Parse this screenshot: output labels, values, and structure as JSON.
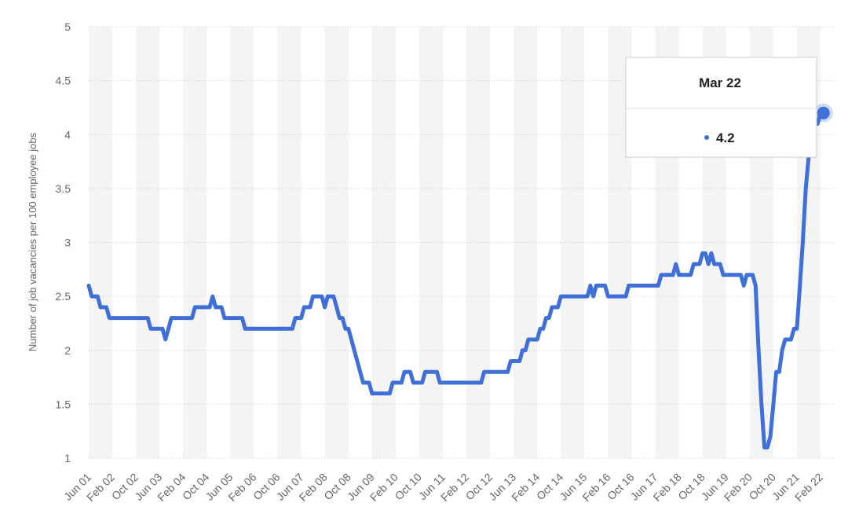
{
  "chart_data": {
    "type": "line",
    "y_label": "Number of job vacancies per 100 employee jobs",
    "color": "#3f6fd8",
    "ylim": [
      1,
      5
    ],
    "yticks": [
      1,
      1.5,
      2,
      2.5,
      3,
      3.5,
      4,
      4.5,
      5
    ],
    "grid": true,
    "categories": [
      "Jun 01",
      null,
      null,
      null,
      null,
      null,
      null,
      null,
      "Feb 02",
      null,
      null,
      null,
      null,
      null,
      null,
      null,
      "Oct 02",
      null,
      null,
      null,
      null,
      null,
      null,
      null,
      "Jun 03",
      null,
      null,
      null,
      null,
      null,
      null,
      null,
      "Feb 04",
      null,
      null,
      null,
      null,
      null,
      null,
      null,
      "Oct 04",
      null,
      null,
      null,
      null,
      null,
      null,
      null,
      "Jun 05",
      null,
      null,
      null,
      null,
      null,
      null,
      null,
      "Feb 06",
      null,
      null,
      null,
      null,
      null,
      null,
      null,
      "Oct 06",
      null,
      null,
      null,
      null,
      null,
      null,
      null,
      "Jun 07",
      null,
      null,
      null,
      null,
      null,
      null,
      null,
      "Feb 08",
      null,
      null,
      null,
      null,
      null,
      null,
      null,
      "Oct 08",
      null,
      null,
      null,
      null,
      null,
      null,
      null,
      "Jun 09",
      null,
      null,
      null,
      null,
      null,
      null,
      null,
      "Feb 10",
      null,
      null,
      null,
      null,
      null,
      null,
      null,
      "Oct 10",
      null,
      null,
      null,
      null,
      null,
      null,
      null,
      "Jun 11",
      null,
      null,
      null,
      null,
      null,
      null,
      null,
      "Feb 12",
      null,
      null,
      null,
      null,
      null,
      null,
      null,
      "Oct 12",
      null,
      null,
      null,
      null,
      null,
      null,
      null,
      "Jun 13",
      null,
      null,
      null,
      null,
      null,
      null,
      null,
      "Feb 14",
      null,
      null,
      null,
      null,
      null,
      null,
      null,
      "Oct 14",
      null,
      null,
      null,
      null,
      null,
      null,
      null,
      "Jun 15",
      null,
      null,
      null,
      null,
      null,
      null,
      null,
      "Feb 16",
      null,
      null,
      null,
      null,
      null,
      null,
      null,
      "Oct 16",
      null,
      null,
      null,
      null,
      null,
      null,
      null,
      "Jun 17",
      null,
      null,
      null,
      null,
      null,
      null,
      null,
      "Feb 18",
      null,
      null,
      null,
      null,
      null,
      null,
      null,
      "Oct 18",
      null,
      null,
      null,
      null,
      null,
      null,
      null,
      "Jun 19",
      null,
      null,
      null,
      null,
      null,
      null,
      null,
      "Feb 20",
      null,
      null,
      null,
      null,
      null,
      null,
      null,
      "Oct 20",
      null,
      null,
      null,
      null,
      null,
      null,
      null,
      "Jun 21",
      null,
      null,
      null,
      null,
      null,
      null,
      null,
      "Feb 22",
      "Mar 22"
    ],
    "values": [
      2.6,
      2.5,
      2.5,
      2.5,
      2.4,
      2.4,
      2.4,
      2.3,
      2.3,
      2.3,
      2.3,
      2.3,
      2.3,
      2.3,
      2.3,
      2.3,
      2.3,
      2.3,
      2.3,
      2.3,
      2.3,
      2.2,
      2.2,
      2.2,
      2.2,
      2.2,
      2.1,
      2.2,
      2.3,
      2.3,
      2.3,
      2.3,
      2.3,
      2.3,
      2.3,
      2.3,
      2.4,
      2.4,
      2.4,
      2.4,
      2.4,
      2.4,
      2.5,
      2.4,
      2.4,
      2.4,
      2.3,
      2.3,
      2.3,
      2.3,
      2.3,
      2.3,
      2.3,
      2.2,
      2.2,
      2.2,
      2.2,
      2.2,
      2.2,
      2.2,
      2.2,
      2.2,
      2.2,
      2.2,
      2.2,
      2.2,
      2.2,
      2.2,
      2.2,
      2.2,
      2.3,
      2.3,
      2.3,
      2.4,
      2.4,
      2.4,
      2.5,
      2.5,
      2.5,
      2.5,
      2.4,
      2.5,
      2.5,
      2.5,
      2.4,
      2.3,
      2.3,
      2.2,
      2.2,
      2.1,
      2.0,
      1.9,
      1.8,
      1.7,
      1.7,
      1.7,
      1.6,
      1.6,
      1.6,
      1.6,
      1.6,
      1.6,
      1.6,
      1.7,
      1.7,
      1.7,
      1.7,
      1.8,
      1.8,
      1.8,
      1.7,
      1.7,
      1.7,
      1.7,
      1.8,
      1.8,
      1.8,
      1.8,
      1.8,
      1.7,
      1.7,
      1.7,
      1.7,
      1.7,
      1.7,
      1.7,
      1.7,
      1.7,
      1.7,
      1.7,
      1.7,
      1.7,
      1.7,
      1.7,
      1.8,
      1.8,
      1.8,
      1.8,
      1.8,
      1.8,
      1.8,
      1.8,
      1.8,
      1.9,
      1.9,
      1.9,
      1.9,
      2.0,
      2.0,
      2.1,
      2.1,
      2.1,
      2.1,
      2.2,
      2.2,
      2.3,
      2.3,
      2.4,
      2.4,
      2.4,
      2.5,
      2.5,
      2.5,
      2.5,
      2.5,
      2.5,
      2.5,
      2.5,
      2.5,
      2.5,
      2.6,
      2.5,
      2.6,
      2.6,
      2.6,
      2.6,
      2.5,
      2.5,
      2.5,
      2.5,
      2.5,
      2.5,
      2.5,
      2.6,
      2.6,
      2.6,
      2.6,
      2.6,
      2.6,
      2.6,
      2.6,
      2.6,
      2.6,
      2.6,
      2.7,
      2.7,
      2.7,
      2.7,
      2.7,
      2.8,
      2.7,
      2.7,
      2.7,
      2.7,
      2.7,
      2.8,
      2.8,
      2.8,
      2.9,
      2.9,
      2.8,
      2.9,
      2.8,
      2.8,
      2.8,
      2.7,
      2.7,
      2.7,
      2.7,
      2.7,
      2.7,
      2.7,
      2.6,
      2.7,
      2.7,
      2.7,
      2.6,
      2.0,
      1.5,
      1.1,
      1.1,
      1.2,
      1.5,
      1.8,
      1.8,
      2.0,
      2.1,
      2.1,
      2.1,
      2.2,
      2.2,
      2.6,
      3.0,
      3.5,
      3.8,
      4.0,
      4.1,
      4.1,
      4.2,
      4.2
    ]
  }
}
